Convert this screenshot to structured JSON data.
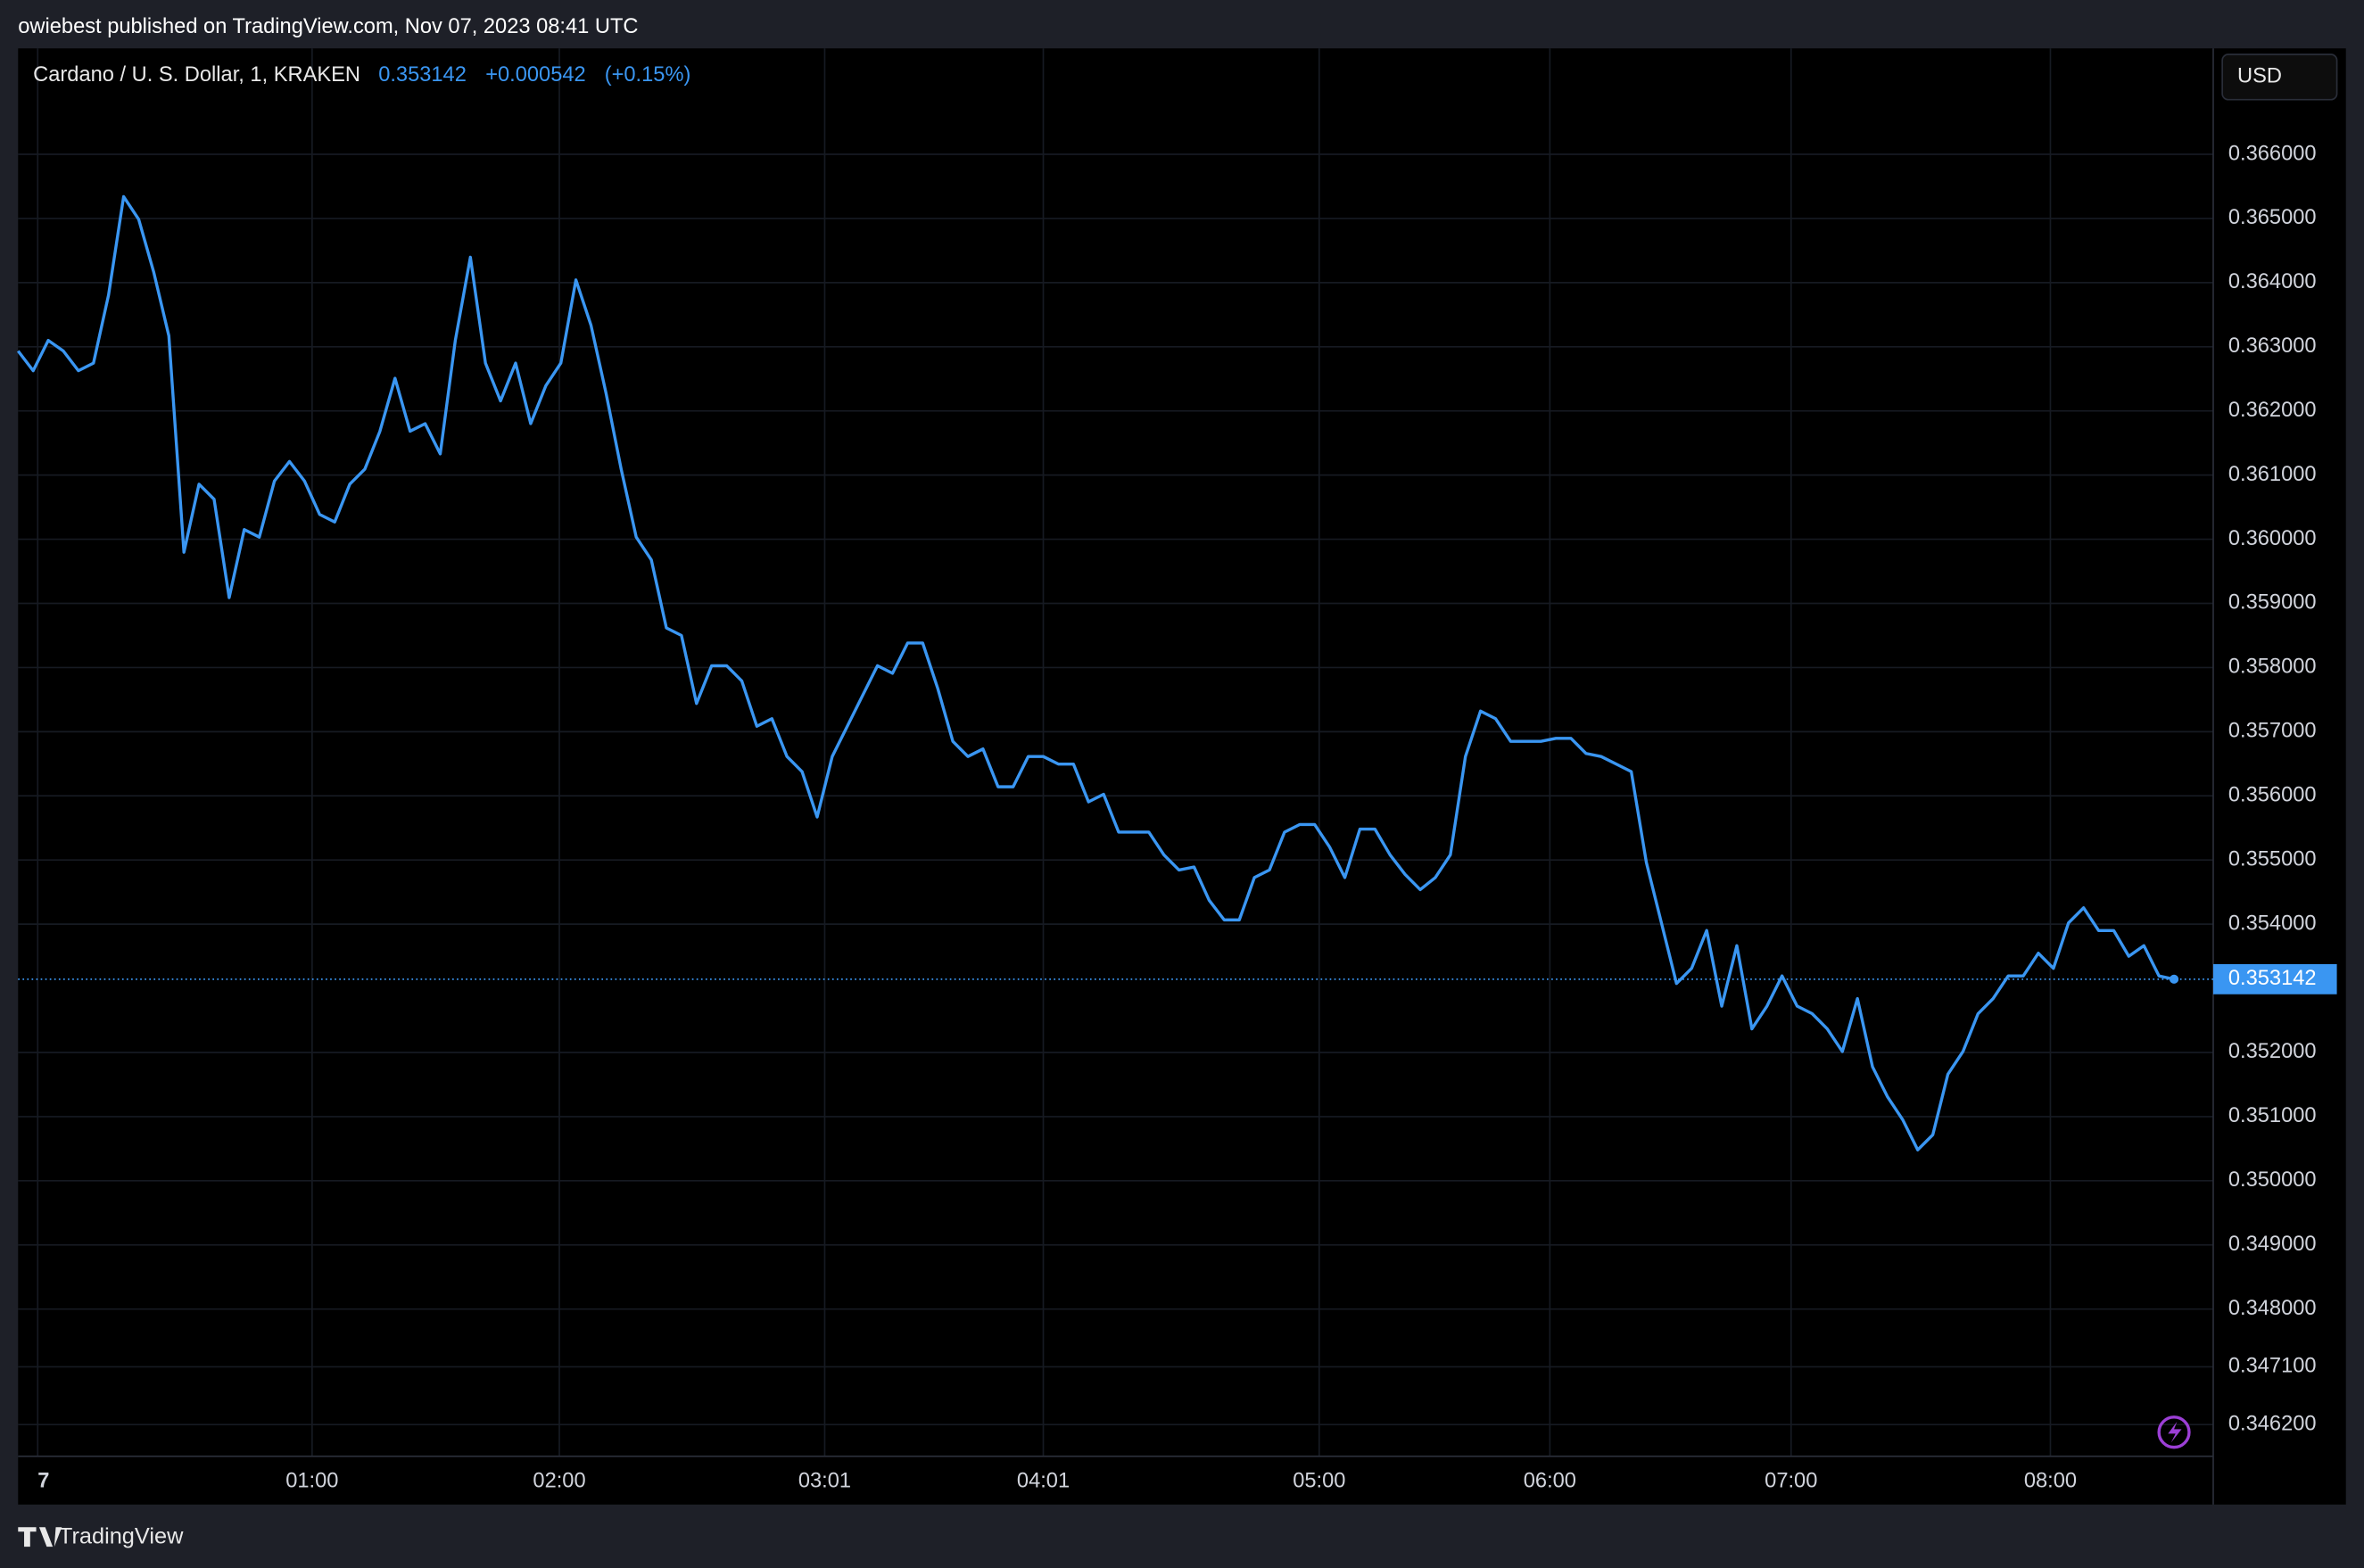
{
  "header": {
    "published": "owiebest published on TradingView.com, Nov 07, 2023 08:41 UTC",
    "brand": "TradingView"
  },
  "chart_data": {
    "type": "line",
    "symbol": "Cardano / U. S. Dollar, 1, KRAKEN",
    "last_price": 0.353142,
    "change": "+0.000542",
    "change_percent": "(+0.15%)",
    "currency": "USD",
    "series": [
      {
        "color": "#3a96f2",
        "values": [
          0.362934,
          0.362627,
          0.363099,
          0.362934,
          0.362627,
          0.362745,
          0.363807,
          0.36534,
          0.364986,
          0.36416,
          0.36317,
          0.359797,
          0.360858,
          0.360623,
          0.35909,
          0.360151,
          0.360033,
          0.360906,
          0.361212,
          0.360906,
          0.360387,
          0.360269,
          0.360858,
          0.361094,
          0.361684,
          0.362509,
          0.361684,
          0.361802,
          0.36133,
          0.363099,
          0.364396,
          0.362745,
          0.362156,
          0.362745,
          0.361802,
          0.362391,
          0.362745,
          0.364042,
          0.363335,
          0.362274,
          0.361094,
          0.360033,
          0.359679,
          0.358618,
          0.3585,
          0.357439,
          0.358028,
          0.358028,
          0.357792,
          0.357085,
          0.357203,
          0.356613,
          0.356377,
          0.35567,
          0.356613,
          0.357085,
          0.357557,
          0.358028,
          0.35791,
          0.358382,
          0.358382,
          0.357674,
          0.356849,
          0.356613,
          0.356731,
          0.356141,
          0.356141,
          0.356613,
          0.356613,
          0.356495,
          0.356495,
          0.355906,
          0.356024,
          0.355434,
          0.355434,
          0.355434,
          0.35508,
          0.354844,
          0.354891,
          0.354373,
          0.354066,
          0.354066,
          0.354726,
          0.354844,
          0.355434,
          0.355552,
          0.355552,
          0.355198,
          0.354726,
          0.355481,
          0.355481,
          0.35508,
          0.354774,
          0.354538,
          0.354726,
          0.35508,
          0.356613,
          0.357321,
          0.357203,
          0.356849,
          0.356849,
          0.356849,
          0.356896,
          0.356896,
          0.35666,
          0.356613,
          0.356495,
          0.356377,
          0.354962,
          0.354019,
          0.353075,
          0.353311,
          0.353901,
          0.352722,
          0.353665,
          0.352368,
          0.352722,
          0.353193,
          0.352722,
          0.352604,
          0.352368,
          0.352014,
          0.35284,
          0.351778,
          0.351307,
          0.350953,
          0.350481,
          0.350717,
          0.35166,
          0.352014,
          0.352604,
          0.35284,
          0.353193,
          0.353193,
          0.353547,
          0.353311,
          0.354019,
          0.354255,
          0.353901,
          0.353901,
          0.3535,
          0.353665,
          0.353193,
          0.353142
        ]
      }
    ],
    "xlim": [
      0,
      145.6
    ],
    "xticks": [
      {
        "value": 1.3,
        "label": "7"
      },
      {
        "value": 19.5,
        "label": "01:00"
      },
      {
        "value": 35.9,
        "label": "02:00"
      },
      {
        "value": 53.5,
        "label": "03:01"
      },
      {
        "value": 68,
        "label": "04:01"
      },
      {
        "value": 86.3,
        "label": "05:00"
      },
      {
        "value": 101.6,
        "label": "06:00"
      },
      {
        "value": 117.6,
        "label": "07:00"
      },
      {
        "value": 134.8,
        "label": "08:00"
      }
    ],
    "ylim": [
      0.345705,
      0.367651
    ],
    "yticks": [
      {
        "value": 0.366,
        "label": "0.366000"
      },
      {
        "value": 0.365,
        "label": "0.365000"
      },
      {
        "value": 0.364,
        "label": "0.364000"
      },
      {
        "value": 0.363,
        "label": "0.363000"
      },
      {
        "value": 0.362,
        "label": "0.362000"
      },
      {
        "value": 0.361,
        "label": "0.361000"
      },
      {
        "value": 0.36,
        "label": "0.360000"
      },
      {
        "value": 0.359,
        "label": "0.359000"
      },
      {
        "value": 0.358,
        "label": "0.358000"
      },
      {
        "value": 0.357,
        "label": "0.357000"
      },
      {
        "value": 0.356,
        "label": "0.356000"
      },
      {
        "value": 0.355,
        "label": "0.355000"
      },
      {
        "value": 0.354,
        "label": "0.354000"
      },
      {
        "value": 0.352,
        "label": "0.352000"
      },
      {
        "value": 0.351,
        "label": "0.351000"
      },
      {
        "value": 0.35,
        "label": "0.350000"
      },
      {
        "value": 0.349,
        "label": "0.349000"
      },
      {
        "value": 0.348,
        "label": "0.348000"
      },
      {
        "value": 0.3471,
        "label": "0.347100"
      },
      {
        "value": 0.3462,
        "label": "0.346200"
      }
    ],
    "grid": true
  }
}
